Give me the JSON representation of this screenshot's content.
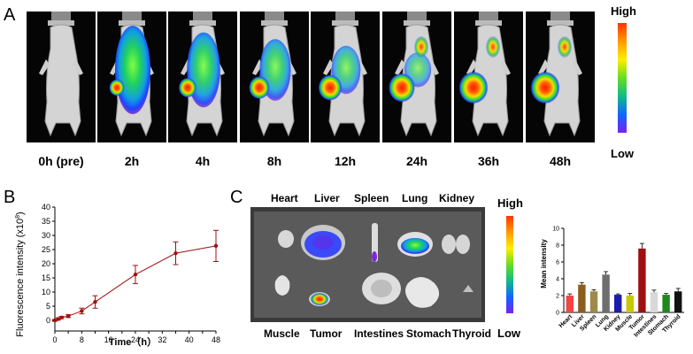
{
  "panels": {
    "a": "A",
    "b": "B",
    "c": "C"
  },
  "panel_a": {
    "timepoints": [
      "0h (pre)",
      "2h",
      "4h",
      "8h",
      "12h",
      "24h",
      "36h",
      "48h"
    ],
    "colorbar": {
      "high": "High",
      "low": "Low"
    }
  },
  "panel_c": {
    "organs_top": [
      "Heart",
      "Liver",
      "Spleen",
      "Lung",
      "Kidney"
    ],
    "organs_bottom": [
      "Muscle",
      "Tumor",
      "Intestines",
      "Stomach",
      "Thyroid"
    ],
    "colorbar": {
      "high": "High",
      "low": "Low"
    }
  },
  "chart_data": [
    {
      "type": "line",
      "xlabel": "Time（h）",
      "ylabel": "Fluorescence intensity (x10",
      "ylabel_sup": "8",
      "ylabel_end": ")",
      "x": [
        0,
        1,
        2,
        4,
        8,
        12,
        24,
        36,
        48
      ],
      "y": [
        0,
        0.5,
        1,
        1.5,
        3.3,
        6.5,
        16.2,
        23.7,
        26.3
      ],
      "err": [
        0.3,
        0.4,
        0.4,
        0.5,
        1.0,
        2.2,
        3.2,
        4.0,
        5.5
      ],
      "xticks": [
        0,
        4,
        8,
        12,
        16,
        20,
        24,
        28,
        32,
        36,
        40,
        44,
        48
      ],
      "xticklabels": [
        "0",
        "",
        "8",
        "",
        "16",
        "",
        "24",
        "",
        "32",
        "",
        "40",
        "",
        "48"
      ],
      "yticks": [
        0,
        5,
        10,
        15,
        20,
        25,
        30,
        35,
        40
      ],
      "xlim": [
        0,
        48
      ],
      "ylim": [
        0,
        40
      ],
      "color": "#a01010"
    },
    {
      "type": "bar",
      "ylabel": "Mean intensity",
      "categories": [
        "Heart",
        "Liver",
        "Spleen",
        "Lung",
        "Kidney",
        "Muscle",
        "Tumor",
        "Intestines",
        "Stomach",
        "Thyroid"
      ],
      "values": [
        2.0,
        3.3,
        2.5,
        4.5,
        2.1,
        2.0,
        7.6,
        2.4,
        2.1,
        2.5
      ],
      "err": [
        0.2,
        0.25,
        0.2,
        0.35,
        0.1,
        0.25,
        0.6,
        0.25,
        0.15,
        0.35
      ],
      "colors": [
        "#f44444",
        "#8b5e20",
        "#9e8a4a",
        "#6e6e6e",
        "#1c1cae",
        "#c8c800",
        "#a01010",
        "#d8d8d8",
        "#1e8a1e",
        "#111111"
      ],
      "yticks": [
        0,
        2,
        4,
        6,
        8,
        10
      ],
      "ylim": [
        0,
        10
      ]
    }
  ]
}
